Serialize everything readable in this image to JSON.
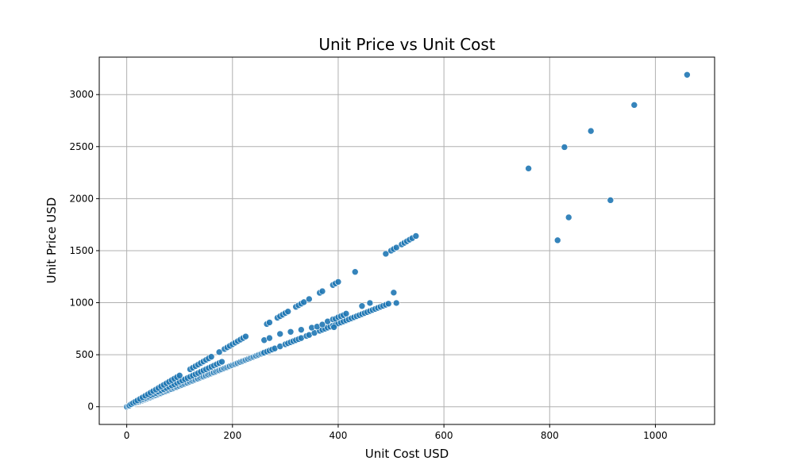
{
  "chart_data": {
    "type": "scatter",
    "title": "Unit Price vs Unit Cost",
    "xlabel": "Unit Cost USD",
    "ylabel": "Unit Price USD",
    "xlim": [
      -52,
      1112
    ],
    "ylim": [
      -170,
      3360
    ],
    "xticks": [
      0,
      200,
      400,
      600,
      800,
      1000
    ],
    "yticks": [
      0,
      500,
      1000,
      1500,
      2000,
      2500,
      3000
    ],
    "grid": true,
    "marker_color": "#1f77b4",
    "marker_edge": "#ffffff",
    "points": [
      [
        0,
        0
      ],
      [
        3,
        6
      ],
      [
        5,
        10
      ],
      [
        8,
        16
      ],
      [
        10,
        20
      ],
      [
        13,
        26
      ],
      [
        15,
        30
      ],
      [
        18,
        36
      ],
      [
        20,
        40
      ],
      [
        23,
        46
      ],
      [
        25,
        50
      ],
      [
        28,
        56
      ],
      [
        30,
        60
      ],
      [
        33,
        66
      ],
      [
        35,
        70
      ],
      [
        38,
        76
      ],
      [
        40,
        80
      ],
      [
        43,
        86
      ],
      [
        45,
        90
      ],
      [
        48,
        96
      ],
      [
        50,
        100
      ],
      [
        53,
        106
      ],
      [
        55,
        110
      ],
      [
        58,
        116
      ],
      [
        60,
        120
      ],
      [
        63,
        126
      ],
      [
        65,
        130
      ],
      [
        68,
        136
      ],
      [
        70,
        140
      ],
      [
        73,
        146
      ],
      [
        75,
        150
      ],
      [
        78,
        156
      ],
      [
        80,
        160
      ],
      [
        83,
        166
      ],
      [
        85,
        170
      ],
      [
        88,
        176
      ],
      [
        90,
        180
      ],
      [
        93,
        186
      ],
      [
        95,
        190
      ],
      [
        98,
        196
      ],
      [
        100,
        200
      ],
      [
        103,
        206
      ],
      [
        105,
        210
      ],
      [
        108,
        216
      ],
      [
        110,
        220
      ],
      [
        113,
        226
      ],
      [
        115,
        230
      ],
      [
        118,
        236
      ],
      [
        120,
        240
      ],
      [
        123,
        246
      ],
      [
        125,
        250
      ],
      [
        128,
        256
      ],
      [
        130,
        260
      ],
      [
        133,
        266
      ],
      [
        135,
        270
      ],
      [
        138,
        276
      ],
      [
        140,
        280
      ],
      [
        143,
        286
      ],
      [
        145,
        290
      ],
      [
        148,
        296
      ],
      [
        150,
        300
      ],
      [
        153,
        306
      ],
      [
        155,
        310
      ],
      [
        158,
        316
      ],
      [
        160,
        320
      ],
      [
        163,
        326
      ],
      [
        165,
        330
      ],
      [
        168,
        336
      ],
      [
        170,
        340
      ],
      [
        173,
        346
      ],
      [
        175,
        350
      ],
      [
        178,
        356
      ],
      [
        180,
        360
      ],
      [
        183,
        366
      ],
      [
        185,
        370
      ],
      [
        188,
        376
      ],
      [
        190,
        380
      ],
      [
        193,
        386
      ],
      [
        195,
        390
      ],
      [
        198,
        396
      ],
      [
        200,
        400
      ],
      [
        203,
        406
      ],
      [
        205,
        410
      ],
      [
        208,
        416
      ],
      [
        210,
        420
      ],
      [
        213,
        426
      ],
      [
        215,
        430
      ],
      [
        218,
        436
      ],
      [
        220,
        440
      ],
      [
        223,
        446
      ],
      [
        225,
        450
      ],
      [
        228,
        456
      ],
      [
        230,
        460
      ],
      [
        233,
        466
      ],
      [
        235,
        470
      ],
      [
        238,
        476
      ],
      [
        240,
        480
      ],
      [
        243,
        486
      ],
      [
        245,
        490
      ],
      [
        248,
        496
      ],
      [
        250,
        500
      ],
      [
        253,
        506
      ],
      [
        255,
        510
      ],
      [
        258,
        516
      ],
      [
        260,
        520
      ],
      [
        265,
        530
      ],
      [
        270,
        540
      ],
      [
        275,
        550
      ],
      [
        5,
        12
      ],
      [
        10,
        24
      ],
      [
        15,
        36
      ],
      [
        20,
        48
      ],
      [
        25,
        60
      ],
      [
        30,
        72
      ],
      [
        35,
        84
      ],
      [
        40,
        96
      ],
      [
        45,
        108
      ],
      [
        50,
        120
      ],
      [
        55,
        132
      ],
      [
        60,
        144
      ],
      [
        65,
        156
      ],
      [
        70,
        168
      ],
      [
        75,
        180
      ],
      [
        80,
        192
      ],
      [
        85,
        204
      ],
      [
        90,
        216
      ],
      [
        95,
        228
      ],
      [
        100,
        240
      ],
      [
        105,
        252
      ],
      [
        110,
        264
      ],
      [
        115,
        276
      ],
      [
        120,
        288
      ],
      [
        125,
        300
      ],
      [
        130,
        312
      ],
      [
        135,
        324
      ],
      [
        140,
        336
      ],
      [
        145,
        348
      ],
      [
        150,
        360
      ],
      [
        155,
        372
      ],
      [
        160,
        384
      ],
      [
        165,
        396
      ],
      [
        170,
        408
      ],
      [
        175,
        420
      ],
      [
        180,
        432
      ],
      [
        8,
        24
      ],
      [
        12,
        36
      ],
      [
        16,
        48
      ],
      [
        20,
        60
      ],
      [
        25,
        75
      ],
      [
        30,
        90
      ],
      [
        35,
        105
      ],
      [
        40,
        120
      ],
      [
        45,
        135
      ],
      [
        50,
        150
      ],
      [
        55,
        165
      ],
      [
        60,
        180
      ],
      [
        65,
        195
      ],
      [
        70,
        210
      ],
      [
        75,
        225
      ],
      [
        80,
        240
      ],
      [
        85,
        255
      ],
      [
        90,
        270
      ],
      [
        95,
        285
      ],
      [
        100,
        300
      ],
      [
        120,
        360
      ],
      [
        125,
        375
      ],
      [
        130,
        390
      ],
      [
        135,
        405
      ],
      [
        140,
        420
      ],
      [
        145,
        435
      ],
      [
        150,
        450
      ],
      [
        155,
        465
      ],
      [
        160,
        480
      ],
      [
        175,
        525
      ],
      [
        185,
        555
      ],
      [
        190,
        570
      ],
      [
        195,
        585
      ],
      [
        200,
        600
      ],
      [
        205,
        615
      ],
      [
        210,
        630
      ],
      [
        215,
        645
      ],
      [
        220,
        660
      ],
      [
        225,
        675
      ],
      [
        265,
        795
      ],
      [
        270,
        810
      ],
      [
        285,
        855
      ],
      [
        290,
        870
      ],
      [
        295,
        885
      ],
      [
        300,
        900
      ],
      [
        305,
        915
      ],
      [
        320,
        960
      ],
      [
        325,
        975
      ],
      [
        330,
        990
      ],
      [
        335,
        1005
      ],
      [
        345,
        1035
      ],
      [
        365,
        1095
      ],
      [
        370,
        1110
      ],
      [
        390,
        1170
      ],
      [
        395,
        1185
      ],
      [
        400,
        1200
      ],
      [
        432,
        1296
      ],
      [
        490,
        1470
      ],
      [
        500,
        1500
      ],
      [
        505,
        1515
      ],
      [
        510,
        1530
      ],
      [
        520,
        1560
      ],
      [
        525,
        1575
      ],
      [
        530,
        1590
      ],
      [
        535,
        1605
      ],
      [
        540,
        1620
      ],
      [
        547,
        1641
      ],
      [
        280,
        560
      ],
      [
        290,
        580
      ],
      [
        300,
        600
      ],
      [
        305,
        610
      ],
      [
        310,
        620
      ],
      [
        315,
        630
      ],
      [
        320,
        640
      ],
      [
        325,
        650
      ],
      [
        330,
        660
      ],
      [
        340,
        680
      ],
      [
        345,
        690
      ],
      [
        355,
        710
      ],
      [
        365,
        730
      ],
      [
        370,
        740
      ],
      [
        375,
        750
      ],
      [
        380,
        760
      ],
      [
        385,
        770
      ],
      [
        390,
        780
      ],
      [
        395,
        790
      ],
      [
        400,
        800
      ],
      [
        405,
        810
      ],
      [
        410,
        820
      ],
      [
        415,
        830
      ],
      [
        420,
        840
      ],
      [
        425,
        850
      ],
      [
        430,
        860
      ],
      [
        435,
        870
      ],
      [
        440,
        880
      ],
      [
        445,
        890
      ],
      [
        450,
        900
      ],
      [
        455,
        910
      ],
      [
        460,
        920
      ],
      [
        465,
        930
      ],
      [
        470,
        940
      ],
      [
        475,
        950
      ],
      [
        480,
        960
      ],
      [
        485,
        970
      ],
      [
        490,
        980
      ],
      [
        495,
        990
      ],
      [
        260,
        640
      ],
      [
        270,
        660
      ],
      [
        290,
        700
      ],
      [
        310,
        720
      ],
      [
        330,
        740
      ],
      [
        350,
        760
      ],
      [
        360,
        770
      ],
      [
        370,
        790
      ],
      [
        380,
        820
      ],
      [
        390,
        840
      ],
      [
        395,
        845
      ],
      [
        400,
        860
      ],
      [
        405,
        870
      ],
      [
        410,
        880
      ],
      [
        415,
        895
      ],
      [
        392,
        765
      ],
      [
        445,
        968
      ],
      [
        460,
        997
      ],
      [
        505,
        1097
      ],
      [
        510,
        997
      ],
      [
        760,
        2290
      ],
      [
        815,
        1600
      ],
      [
        828,
        2495
      ],
      [
        836,
        1820
      ],
      [
        878,
        2650
      ],
      [
        915,
        1985
      ],
      [
        960,
        2900
      ],
      [
        1060,
        3190
      ]
    ]
  }
}
